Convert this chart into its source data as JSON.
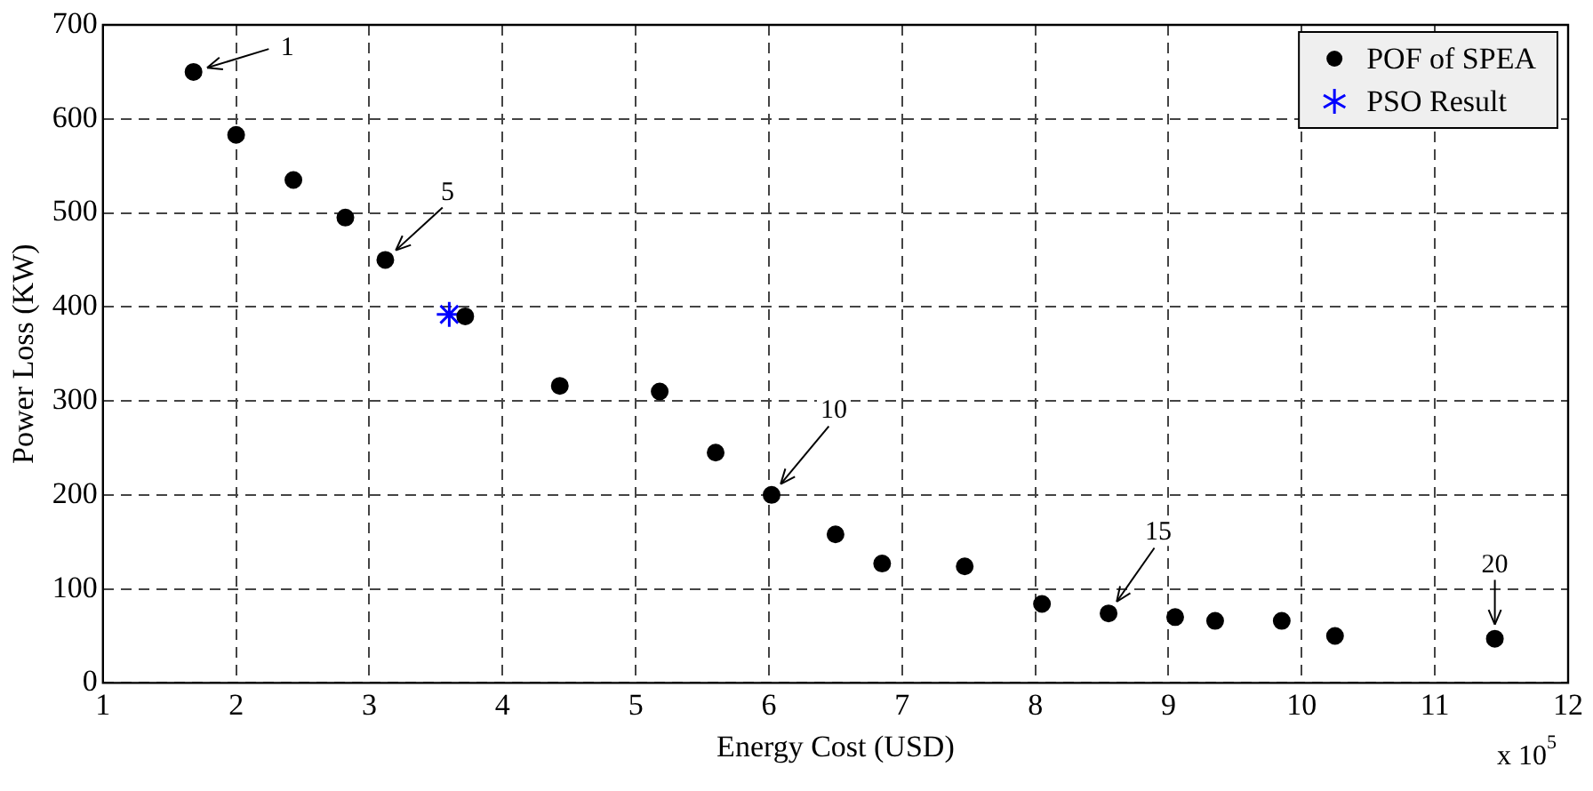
{
  "chart_data": {
    "type": "scatter",
    "xlabel": "Energy Cost (USD)",
    "ylabel": "Power Loss (KW)",
    "xlim": [
      1,
      12
    ],
    "xticks": [
      1,
      2,
      3,
      4,
      5,
      6,
      7,
      8,
      9,
      10,
      11,
      12
    ],
    "ylim": [
      0,
      700
    ],
    "yticks": [
      0,
      100,
      200,
      300,
      400,
      500,
      600,
      700
    ],
    "grid": true,
    "legend": "top right",
    "series": [
      {
        "name": "POF of SPEA",
        "color": "#000000",
        "marker": "circle",
        "x": [
          1.68,
          2.0,
          2.43,
          2.82,
          3.12,
          3.72,
          4.43,
          5.18,
          5.6,
          6.02,
          6.5,
          6.85,
          7.47,
          8.05,
          8.55,
          9.05,
          9.35,
          9.85,
          10.25,
          11.45
        ],
        "values": [
          650,
          583,
          535,
          495,
          450,
          390,
          316,
          310,
          245,
          200,
          158,
          127,
          124,
          84,
          74,
          70,
          66,
          66,
          50,
          47
        ]
      },
      {
        "name": "PSO Result",
        "color": "#0000ff",
        "marker": "cross",
        "x": [
          3.6
        ],
        "values": [
          392
        ]
      }
    ],
    "annotations": [
      {
        "text": "1",
        "x": 1.68,
        "y": 650
      },
      {
        "text": "5",
        "x": 3.12,
        "y": 450
      },
      {
        "text": "10",
        "x": 6.02,
        "y": 200
      },
      {
        "text": "15",
        "x": 8.55,
        "y": 74
      },
      {
        "text": "20",
        "x": 11.45,
        "y": 47
      },
      "x 10$^{5}$"
    ]
  }
}
